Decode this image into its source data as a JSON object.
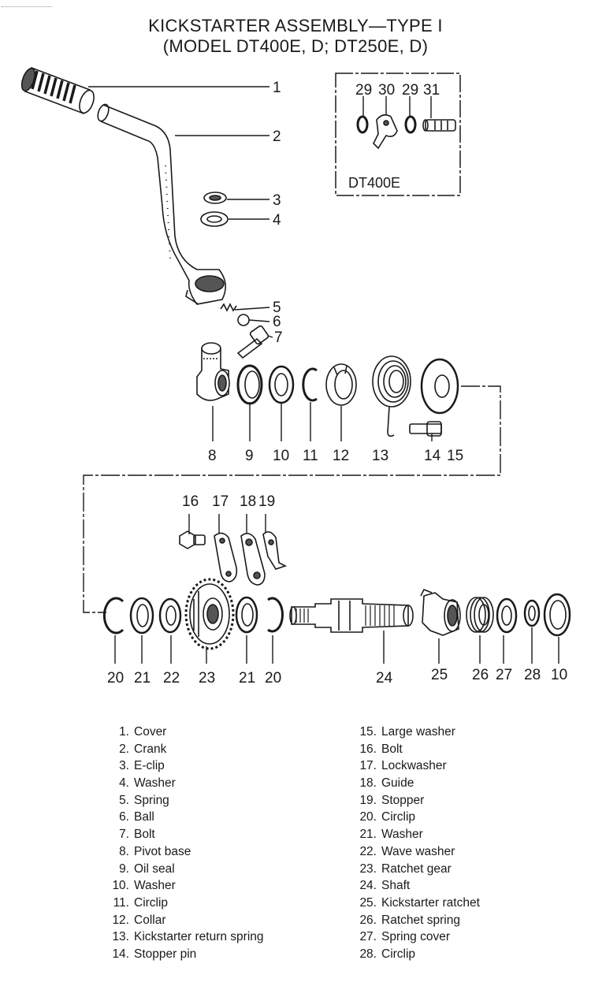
{
  "title": {
    "line1": "KICKSTARTER ASSEMBLY—TYPE I",
    "line2": "(MODEL DT400E, D; DT250E, D)"
  },
  "inset_label": "DT400E",
  "callouts": [
    "1",
    "2",
    "3",
    "4",
    "5",
    "6",
    "7",
    "8",
    "9",
    "10",
    "11",
    "12",
    "13",
    "14",
    "15",
    "16",
    "17",
    "18",
    "19",
    "20",
    "21",
    "22",
    "23",
    "21",
    "20",
    "24",
    "25",
    "26",
    "27",
    "28",
    "10",
    "29",
    "30",
    "29",
    "31"
  ],
  "legend_left": [
    {
      "num": "1.",
      "label": "Cover"
    },
    {
      "num": "2.",
      "label": "Crank"
    },
    {
      "num": "3.",
      "label": "E-clip"
    },
    {
      "num": "4.",
      "label": "Washer"
    },
    {
      "num": "5.",
      "label": "Spring"
    },
    {
      "num": "6.",
      "label": "Ball"
    },
    {
      "num": "7.",
      "label": "Bolt"
    },
    {
      "num": "8.",
      "label": "Pivot base"
    },
    {
      "num": "9.",
      "label": "Oil seal"
    },
    {
      "num": "10.",
      "label": "Washer"
    },
    {
      "num": "11.",
      "label": "Circlip"
    },
    {
      "num": "12.",
      "label": "Collar"
    },
    {
      "num": "13.",
      "label": "Kickstarter return spring"
    },
    {
      "num": "14.",
      "label": "Stopper pin"
    }
  ],
  "legend_right": [
    {
      "num": "15.",
      "label": "Large washer"
    },
    {
      "num": "16.",
      "label": "Bolt"
    },
    {
      "num": "17.",
      "label": "Lockwasher"
    },
    {
      "num": "18.",
      "label": "Guide"
    },
    {
      "num": "19.",
      "label": "Stopper"
    },
    {
      "num": "20.",
      "label": "Circlip"
    },
    {
      "num": "21.",
      "label": "Washer"
    },
    {
      "num": "22.",
      "label": "Wave washer"
    },
    {
      "num": "23.",
      "label": "Ratchet gear"
    },
    {
      "num": "24.",
      "label": "Shaft"
    },
    {
      "num": "25.",
      "label": "Kickstarter ratchet"
    },
    {
      "num": "26.",
      "label": "Ratchet spring"
    },
    {
      "num": "27.",
      "label": "Spring cover"
    },
    {
      "num": "28.",
      "label": "Circlip"
    }
  ]
}
